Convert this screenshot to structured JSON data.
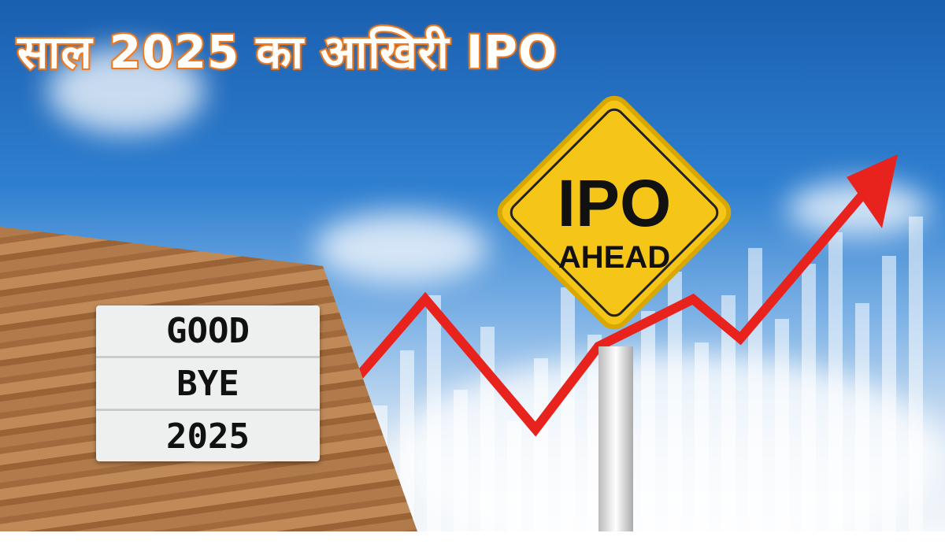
{
  "headline": "साल 2025 का आखिरी IPO",
  "board": {
    "lines": [
      "GOOD",
      "BYE",
      "2025"
    ]
  },
  "sign": {
    "line1": "IPO",
    "line2": "AHEAD",
    "color": "#f5c518"
  },
  "colors": {
    "headline_outline": "#f07a1e",
    "arrow": "#e8221c",
    "sky": "#2f7fd0"
  }
}
